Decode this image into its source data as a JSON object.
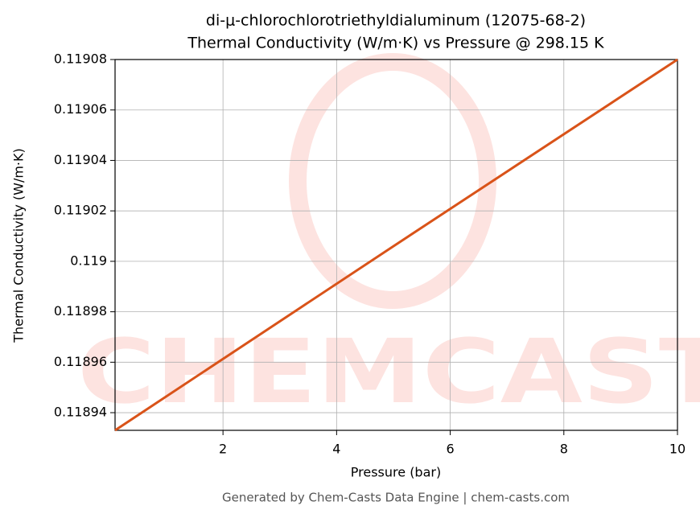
{
  "chart_data": {
    "type": "line",
    "title": "di-μ-chlorochlorotriethyldialuminum (12075-68-2)",
    "subtitle": "Thermal Conductivity (W/m·K) vs Pressure @ 298.15 K",
    "x_label": "Pressure (bar)",
    "y_label": "Thermal Conductivity (W/m·K)",
    "footer": "Generated by Chem-Casts Data Engine | chem-casts.com",
    "watermark": "CHEMCASTS",
    "x": [
      0.1,
      5,
      10
    ],
    "series": [
      {
        "name": "Thermal Conductivity",
        "color": "#d95319",
        "values": [
          0.118933,
          0.119006,
          0.11908
        ]
      }
    ],
    "xlim": [
      0.1,
      10
    ],
    "xticks": [
      2,
      4,
      6,
      8,
      10
    ],
    "ylim": [
      0.118933,
      0.11908
    ],
    "yticks": [
      0.11894,
      0.11896,
      0.11898,
      0.119,
      0.11902,
      0.11904,
      0.11906,
      0.11908
    ],
    "grid": true
  }
}
